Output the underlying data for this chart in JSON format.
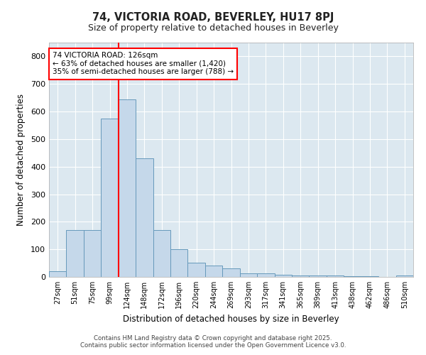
{
  "title1": "74, VICTORIA ROAD, BEVERLEY, HU17 8PJ",
  "title2": "Size of property relative to detached houses in Beverley",
  "xlabel": "Distribution of detached houses by size in Beverley",
  "ylabel": "Number of detached properties",
  "categories": [
    "27sqm",
    "51sqm",
    "75sqm",
    "99sqm",
    "124sqm",
    "148sqm",
    "172sqm",
    "196sqm",
    "220sqm",
    "244sqm",
    "269sqm",
    "293sqm",
    "317sqm",
    "341sqm",
    "365sqm",
    "389sqm",
    "413sqm",
    "438sqm",
    "462sqm",
    "486sqm",
    "510sqm"
  ],
  "values": [
    20,
    170,
    170,
    575,
    645,
    430,
    170,
    100,
    52,
    40,
    32,
    13,
    13,
    8,
    5,
    5,
    5,
    3,
    3,
    1,
    6
  ],
  "bar_color": "#c5d8ea",
  "bar_edge_color": "#6699bb",
  "background_color": "#dce8f0",
  "grid_color": "#ffffff",
  "vline_color": "red",
  "annotation_text": "74 VICTORIA ROAD: 126sqm\n← 63% of detached houses are smaller (1,420)\n35% of semi-detached houses are larger (788) →",
  "ylim": [
    0,
    850
  ],
  "yticks": [
    0,
    100,
    200,
    300,
    400,
    500,
    600,
    700,
    800
  ],
  "fig_bg": "#ffffff",
  "footer_line1": "Contains HM Land Registry data © Crown copyright and database right 2025.",
  "footer_line2": "Contains public sector information licensed under the Open Government Licence v3.0."
}
